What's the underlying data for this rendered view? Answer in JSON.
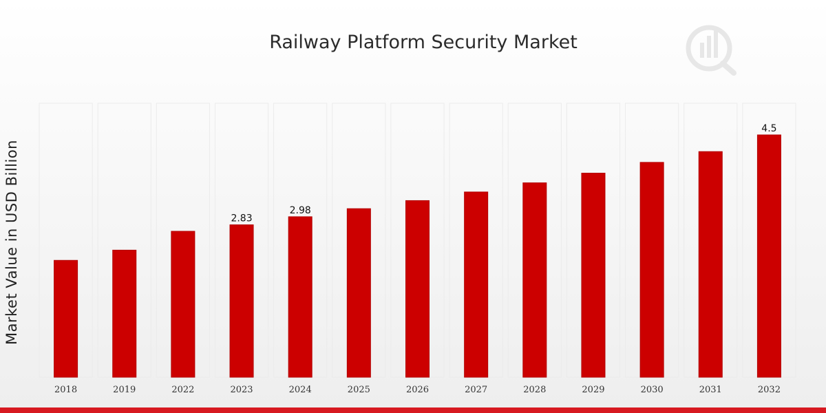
{
  "colors": {
    "bar": "#cc0000",
    "bar_edge": "#b30000",
    "bottom_bar": "#d71920",
    "column_band": "#ebebeb"
  },
  "logo": {
    "icon": "market-research-logo-icon",
    "color": "#dcdcdc"
  },
  "chart_data": {
    "type": "bar",
    "title": "Railway Platform Security Market",
    "xlabel": "",
    "ylabel": "Market Value in USD Billion",
    "categories": [
      "2018",
      "2019",
      "2022",
      "2023",
      "2024",
      "2025",
      "2026",
      "2027",
      "2028",
      "2029",
      "2030",
      "2031",
      "2032"
    ],
    "values": [
      2.17,
      2.36,
      2.71,
      2.83,
      2.98,
      3.13,
      3.28,
      3.44,
      3.61,
      3.79,
      3.99,
      4.19,
      4.5
    ],
    "data_labels": [
      "",
      "",
      "",
      "2.83",
      "2.98",
      "",
      "",
      "",
      "",
      "",
      "",
      "",
      "4.5"
    ],
    "ylim": [
      0,
      4.5
    ],
    "grid": false,
    "legend": "none"
  }
}
